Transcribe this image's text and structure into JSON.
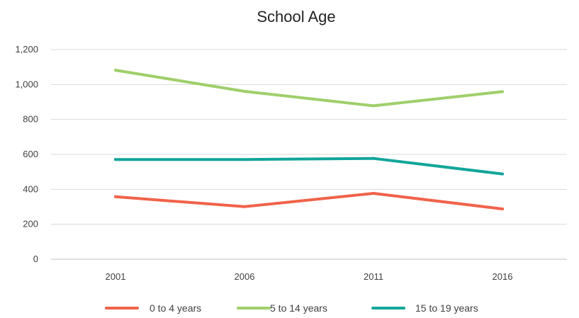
{
  "chart_data": {
    "type": "line",
    "title": "School Age",
    "categories": [
      "2001",
      "2006",
      "2011",
      "2016"
    ],
    "ylim": [
      0,
      1200
    ],
    "yticks": [
      0,
      200,
      400,
      600,
      800,
      1000,
      1200
    ],
    "ytick_labels": [
      "0",
      "200",
      "400",
      "600",
      "800",
      "1,000",
      "1,200"
    ],
    "grid": true,
    "legend_position": "bottom",
    "series": [
      {
        "name": "0 to 4 years",
        "color": "#f0634a",
        "values": [
          358,
          301,
          377,
          288
        ]
      },
      {
        "name": "5 to 14 years",
        "color": "#9fcf6a",
        "values": [
          1082,
          961,
          878,
          959
        ]
      },
      {
        "name": "15 to 19 years",
        "color": "#12a59a",
        "values": [
          571,
          571,
          577,
          488
        ]
      }
    ]
  }
}
